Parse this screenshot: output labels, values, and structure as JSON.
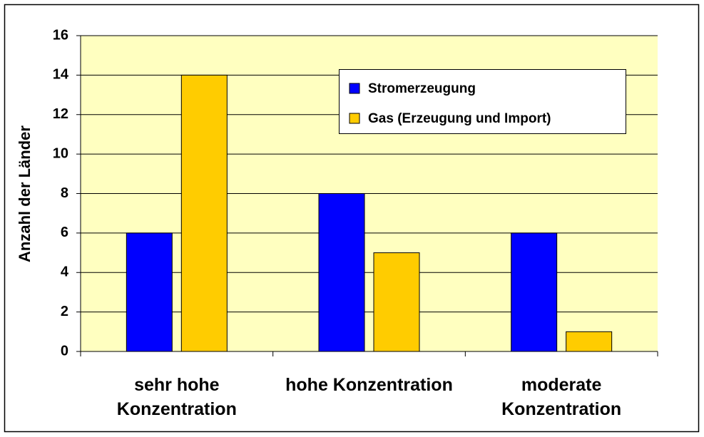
{
  "chart_data": {
    "type": "bar",
    "y_label": "Anzahl der Länder",
    "categories": [
      "sehr hohe Konzentration",
      "hohe Konzentration",
      "moderate Konzentration"
    ],
    "series": [
      {
        "name": "Stromerzeugung",
        "color": "#0000ff",
        "values": [
          6,
          8,
          6
        ]
      },
      {
        "name": "Gas (Erzeugung und Import)",
        "color": "#ffcc00",
        "values": [
          14,
          5,
          1
        ]
      }
    ],
    "ylim": [
      0,
      16
    ],
    "yticks": [
      0,
      2,
      4,
      6,
      8,
      10,
      12,
      14,
      16
    ],
    "grid": true,
    "plot_background": "#ffffc0",
    "legend": "top-right"
  }
}
